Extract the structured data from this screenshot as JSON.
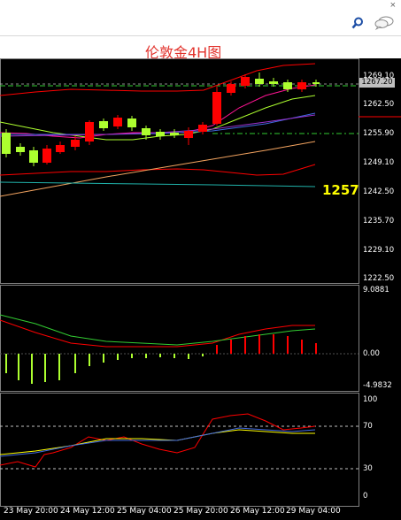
{
  "window": {
    "close_glyph": "×"
  },
  "toolbar": {
    "search_icon": "search-icon",
    "chat_icon": "chat-icon"
  },
  "chart_title": "伦敦金4H图",
  "price_badge": "1257",
  "current_price": "1267.20",
  "main_axis_ticks": [
    "1269.10",
    "1262.50",
    "1255.90",
    "1249.10",
    "1242.50",
    "1235.70",
    "1229.10",
    "1222.50"
  ],
  "macd_axis_ticks": [
    "9.0881",
    "0.00",
    "-4.9832"
  ],
  "rsi_axis_ticks": [
    "100",
    "70",
    "30",
    "0"
  ],
  "time_labels": [
    "23 May 20:00",
    "24 May 12:00",
    "25 May 04:00",
    "25 May 20:00",
    "26 May 12:00",
    "29 May 04:00"
  ],
  "colors": {
    "bull_candle": "#ff0000",
    "bear_candle": "#adff2f",
    "accent_title": "#e2332d",
    "badge": "#ffff00"
  }
}
